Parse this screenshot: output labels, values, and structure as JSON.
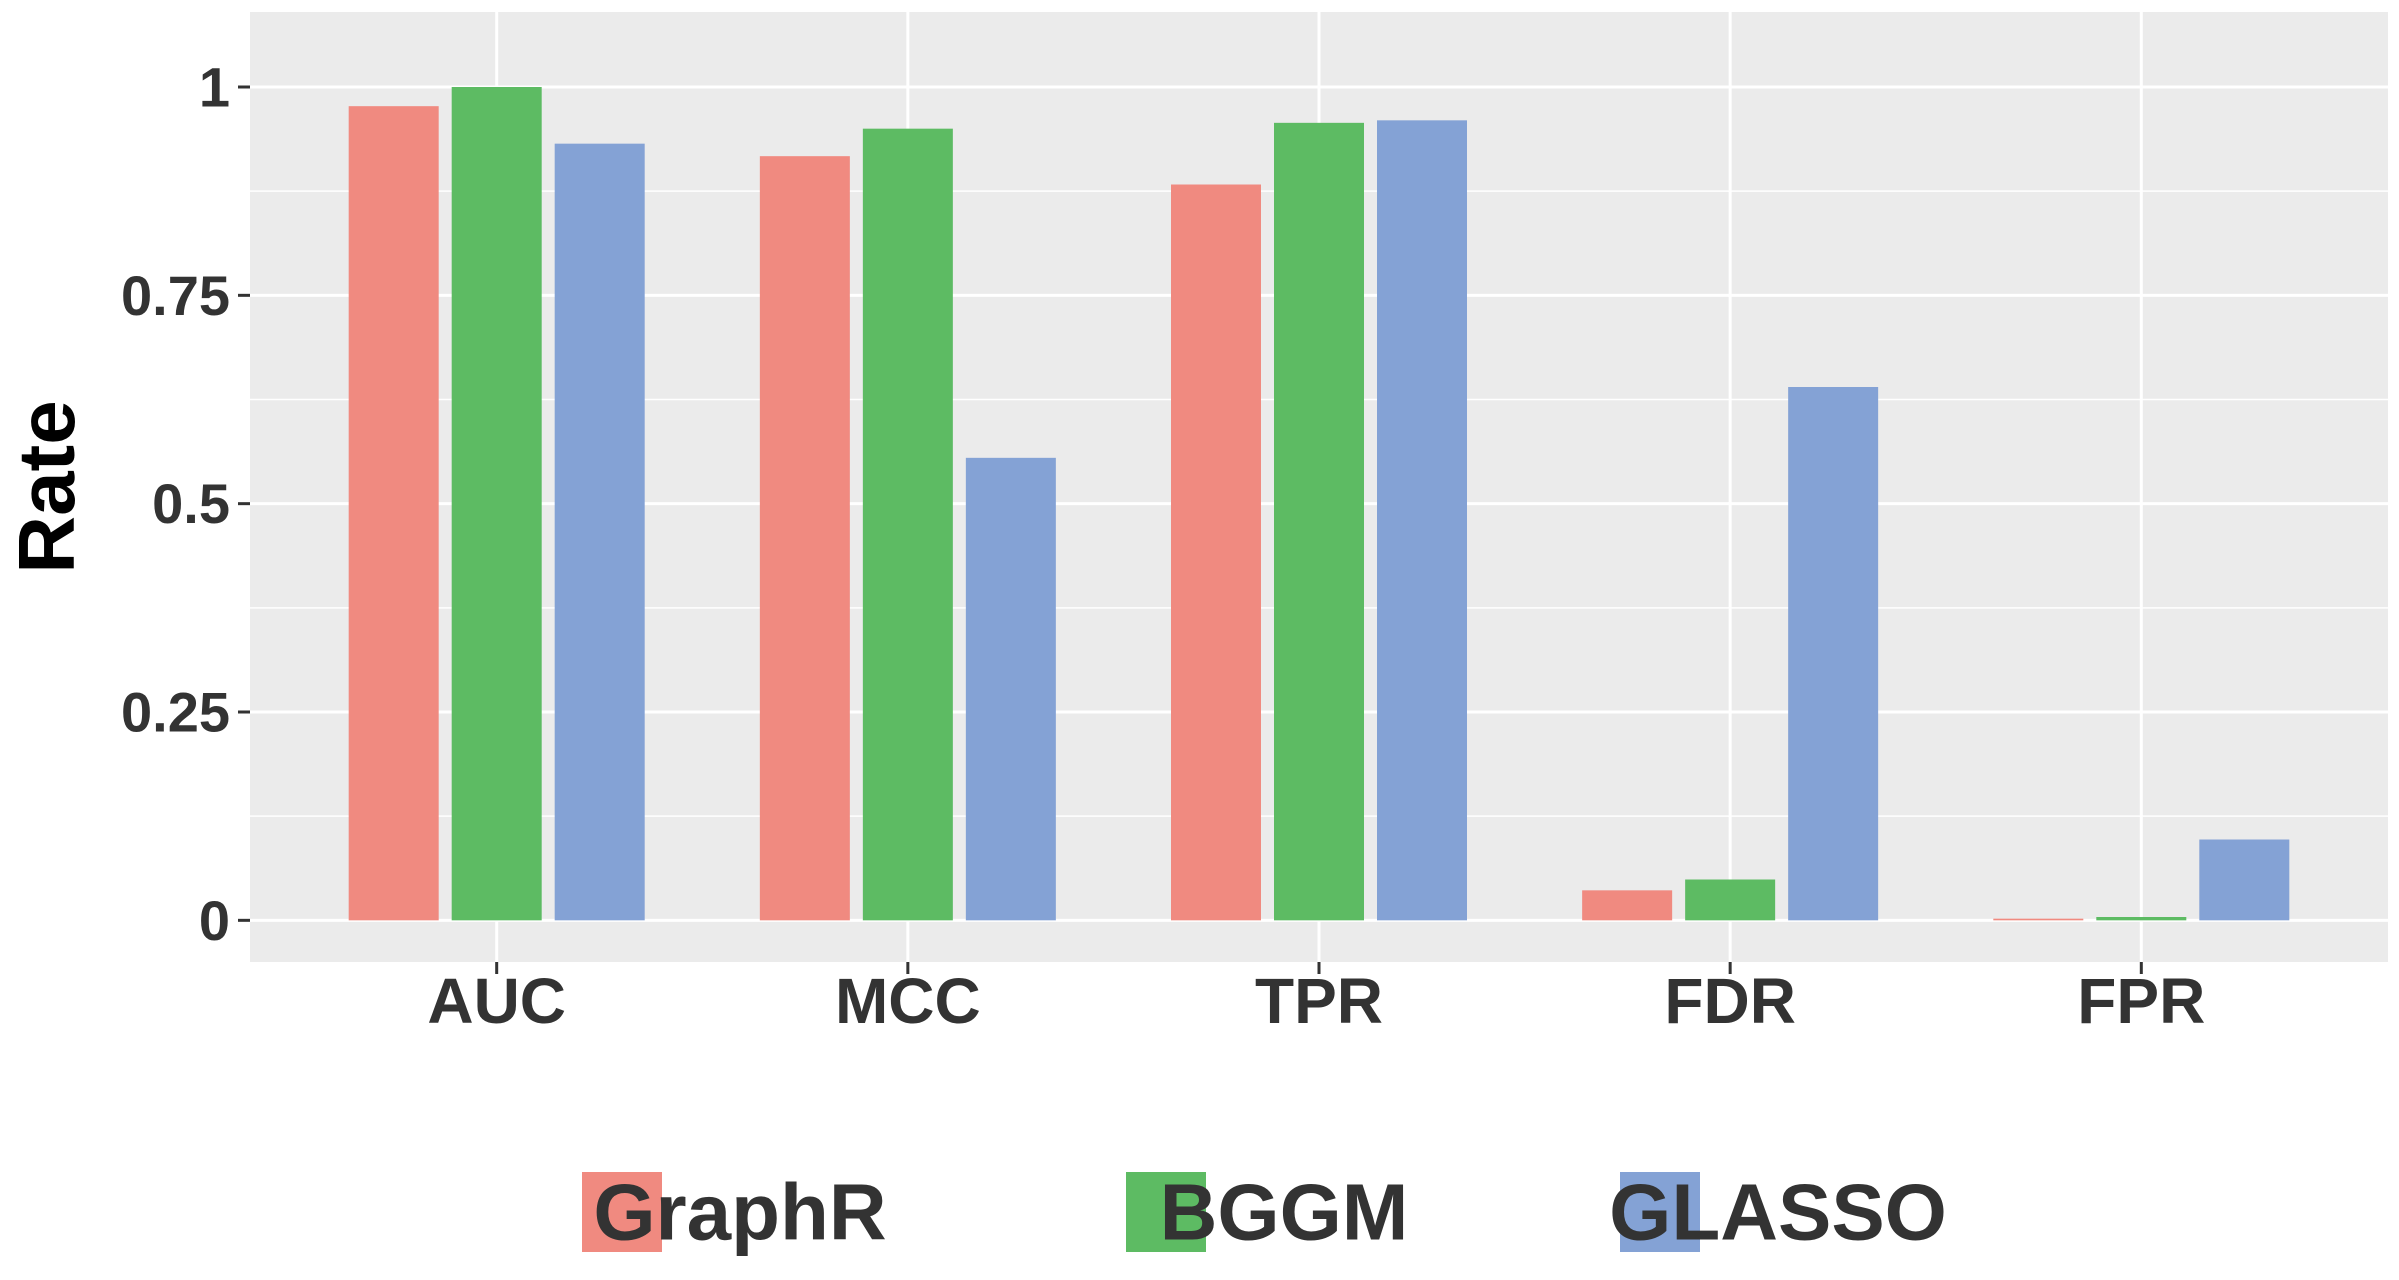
{
  "chart_data": {
    "type": "bar",
    "title": "",
    "xlabel": "",
    "ylabel": "Rate",
    "categories": [
      "AUC",
      "MCC",
      "TPR",
      "FDR",
      "FPR"
    ],
    "series": [
      {
        "name": "GraphR",
        "color": "#F08A80",
        "values": [
          0.977,
          0.917,
          0.883,
          0.036,
          0.002
        ]
      },
      {
        "name": "BGGM",
        "color": "#5DBB63",
        "values": [
          1.0,
          0.95,
          0.957,
          0.049,
          0.004
        ]
      },
      {
        "name": "GLASSO",
        "color": "#84A2D5",
        "values": [
          0.932,
          0.555,
          0.96,
          0.64,
          0.097
        ]
      }
    ],
    "ylim": [
      -0.05,
      1.09
    ],
    "yticks": [
      0,
      0.25,
      0.5,
      0.75,
      1
    ],
    "ytick_labels": [
      "0",
      "0.25",
      "0.5",
      "0.75",
      "1"
    ],
    "grid": true,
    "panel_background": "#EBEBEB",
    "grid_color": "#FFFFFF",
    "legend_position": "bottom"
  }
}
